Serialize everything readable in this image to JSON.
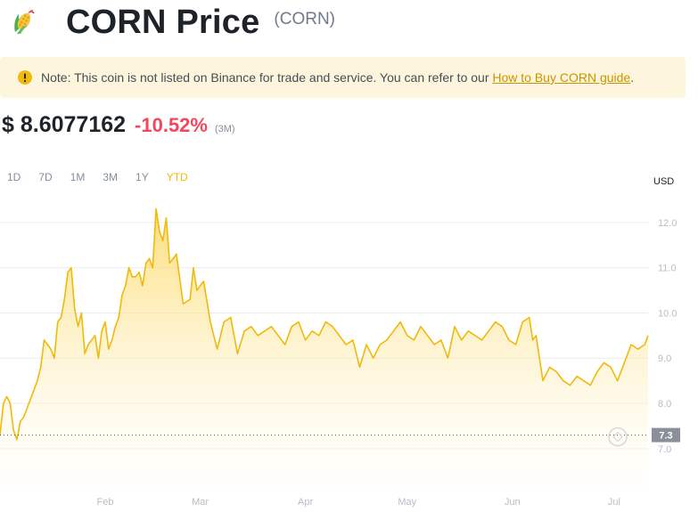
{
  "header": {
    "coin_icon": "corn-emoji-icon",
    "title": "CORN Price",
    "symbol": "(CORN)"
  },
  "notice": {
    "icon": "exclamation-circle-icon",
    "text": "Note: This coin is not listed on Binance for trade and service. You can refer to our ",
    "link_text": "How to Buy CORN guide",
    "suffix": "."
  },
  "price": {
    "value": "$ 8.6077162",
    "change": "-10.52%",
    "period": "(3M)"
  },
  "tabs": [
    {
      "label": "1D",
      "active": false
    },
    {
      "label": "7D",
      "active": false
    },
    {
      "label": "1M",
      "active": false
    },
    {
      "label": "3M",
      "active": false
    },
    {
      "label": "1Y",
      "active": false
    },
    {
      "label": "YTD",
      "active": true
    }
  ],
  "colors": {
    "accent": "#f0b90b",
    "negative": "#f6465d",
    "line": "#f0b90b",
    "area_top": "#fcd34d",
    "area_bottom": "#fffdf5"
  },
  "chart_data": {
    "type": "area",
    "currency_label": "USD",
    "x_labels": [
      "Feb",
      "Mar",
      "Apr",
      "May",
      "Jun",
      "Jul"
    ],
    "x_label_days": [
      31,
      59,
      90,
      120,
      151,
      181
    ],
    "xlim": [
      0,
      191
    ],
    "y_ticks": [
      7.0,
      8.0,
      9.0,
      10.0,
      11.0,
      12.0
    ],
    "ylim": [
      6.15,
      12.45
    ],
    "ref_line_value": 7.3,
    "ref_line_label": "7.3",
    "series": [
      {
        "x": [
          0,
          1,
          2,
          3,
          4,
          5,
          6,
          7,
          8,
          9,
          10,
          11,
          12,
          13,
          14,
          15,
          16,
          17,
          18,
          19,
          20,
          21,
          22,
          23,
          24,
          25,
          26,
          27,
          28,
          29,
          30,
          31,
          32,
          33,
          34,
          35,
          36,
          37,
          38,
          39,
          40,
          41,
          42,
          43,
          44,
          45,
          46,
          47,
          48,
          49,
          50,
          52,
          54,
          56,
          57,
          58,
          60,
          62,
          64,
          66,
          68,
          70,
          72,
          74,
          76,
          78,
          80,
          82,
          84,
          86,
          88,
          90,
          92,
          94,
          96,
          98,
          100,
          102,
          104,
          106,
          108,
          110,
          112,
          114,
          116,
          118,
          120,
          122,
          124,
          126,
          128,
          130,
          132,
          134,
          136,
          138,
          140,
          142,
          144,
          146,
          148,
          150,
          152,
          154,
          156,
          157,
          158,
          160,
          162,
          164,
          166,
          168,
          170,
          172,
          174,
          176,
          178,
          180,
          182,
          184,
          186,
          188,
          190,
          191
        ],
        "y": [
          7.3,
          8.0,
          8.15,
          8.0,
          7.4,
          7.2,
          7.6,
          7.7,
          7.9,
          8.1,
          8.3,
          8.5,
          8.8,
          9.4,
          9.3,
          9.2,
          9.0,
          9.8,
          9.9,
          10.3,
          10.9,
          11.0,
          10.1,
          9.7,
          10.0,
          9.1,
          9.3,
          9.4,
          9.5,
          9.0,
          9.6,
          9.8,
          9.2,
          9.4,
          9.7,
          9.9,
          10.4,
          10.6,
          11.0,
          10.8,
          10.8,
          10.9,
          10.6,
          11.1,
          11.2,
          11.0,
          12.3,
          11.8,
          11.6,
          12.1,
          11.1,
          11.3,
          10.2,
          10.3,
          11.0,
          10.5,
          10.7,
          9.8,
          9.2,
          9.8,
          9.9,
          9.1,
          9.6,
          9.7,
          9.5,
          9.6,
          9.7,
          9.5,
          9.3,
          9.7,
          9.8,
          9.4,
          9.6,
          9.5,
          9.8,
          9.7,
          9.5,
          9.3,
          9.4,
          8.8,
          9.3,
          9.0,
          9.3,
          9.4,
          9.6,
          9.8,
          9.5,
          9.4,
          9.7,
          9.5,
          9.3,
          9.4,
          9.0,
          9.7,
          9.4,
          9.6,
          9.5,
          9.4,
          9.6,
          9.8,
          9.7,
          9.4,
          9.3,
          9.8,
          9.9,
          9.4,
          9.5,
          8.5,
          8.8,
          8.7,
          8.5,
          8.4,
          8.6,
          8.5,
          8.4,
          8.7,
          8.9,
          8.8,
          8.5,
          8.9,
          9.3,
          9.2,
          9.3,
          9.5
        ]
      }
    ],
    "watermark_icon": "binance-logo-icon"
  }
}
